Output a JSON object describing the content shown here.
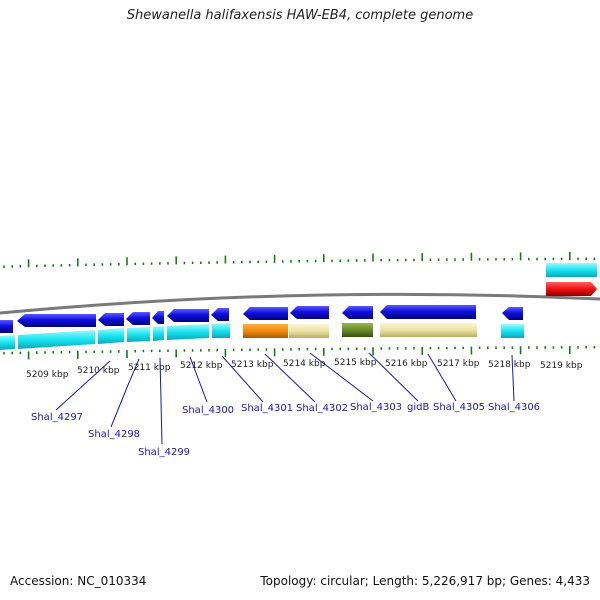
{
  "title": "Shewanella halifaxensis HAW-EB4, complete genome",
  "footer": {
    "accession": "Accession: NC_010334",
    "summary": "Topology: circular; Length: 5,226,917 bp; Genes: 4,433"
  },
  "scale_labels": [
    "5209 kbp",
    "5210 kbp",
    "5211 kbp",
    "5212 kbp",
    "5213 kbp",
    "5214 kbp",
    "5215 kbp",
    "5216 kbp",
    "5217 kbp",
    "5218 kbp",
    "5219 kbp"
  ],
  "gene_labels": [
    "Shal_4297",
    "Shal_4298",
    "Shal_4299",
    "Shal_4300",
    "Shal_4301",
    "Shal_4302",
    "Shal_4303",
    "gidB",
    "Shal_4305",
    "Shal_4306"
  ],
  "colors": {
    "cds": "#1010e0",
    "cds_category": "#18e4f0",
    "orange_category": "#f08a10",
    "khaki_category": "#ece4a4",
    "olive_category": "#6a8a2a",
    "red_feature": "#f01010",
    "backbone": "#7a7a7a",
    "tick": "#1a7a1a",
    "label": "#1a1aa6"
  }
}
